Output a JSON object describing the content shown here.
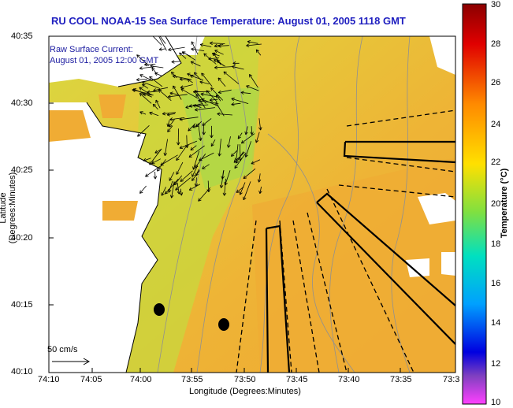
{
  "title": "RU COOL  NOAA-15  Sea Surface Temperature:  August 01, 2005 1118 GMT",
  "xlabel": "Longitude (Degrees:Minutes)",
  "ylabel": "Latitude (Degrees:Minutes)",
  "colorbar": {
    "label": "Temperature (°C)",
    "ticks": [
      "30",
      "28",
      "26",
      "24",
      "22",
      "20",
      "18",
      "16",
      "14",
      "12",
      "10"
    ]
  },
  "x_ticks": [
    "74:10",
    "74:05",
    "74:00",
    "73:55",
    "73:50",
    "73:45",
    "73:40",
    "73:35",
    "73:3"
  ],
  "y_ticks": [
    "40:35",
    "40:30",
    "40:25",
    "40:20",
    "40:15",
    "40:10"
  ],
  "legend": {
    "current_label_1": "Raw Surface Current:",
    "current_label_2": "August 01, 2005 12:00 GMT",
    "scale_label": "50 cm/s"
  },
  "colors": {
    "title": "#2020c0",
    "legend_text": "#1a1aa0",
    "land": "#ffffff",
    "sst_warm": "#f2b233",
    "sst_mid": "#e8d830",
    "sst_cool": "#b8d840"
  }
}
